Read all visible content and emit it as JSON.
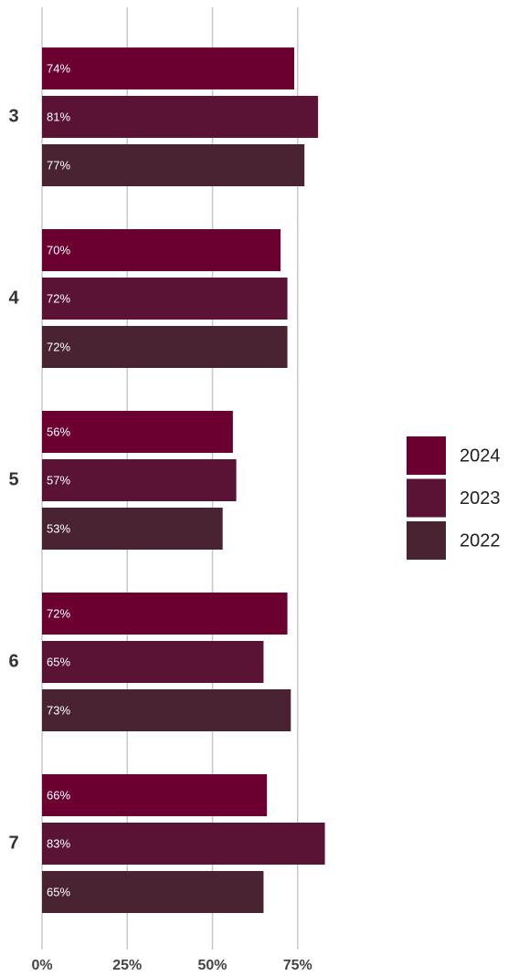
{
  "chart_data": {
    "type": "bar",
    "orientation": "horizontal",
    "categories": [
      "3",
      "4",
      "5",
      "6",
      "7"
    ],
    "series": [
      {
        "name": "2024",
        "color": "#6b0030",
        "values": [
          74,
          70,
          56,
          72,
          66
        ],
        "value_labels": [
          "74%",
          "70%",
          "56%",
          "72%",
          "66%"
        ]
      },
      {
        "name": "2023",
        "color": "#5a1235",
        "values": [
          81,
          72,
          57,
          65,
          83
        ],
        "value_labels": [
          "81%",
          "72%",
          "57%",
          "65%",
          "83%"
        ]
      },
      {
        "name": "2022",
        "color": "#4a2333",
        "values": [
          77,
          72,
          53,
          73,
          65
        ],
        "value_labels": [
          "77%",
          "72%",
          "53%",
          "73%",
          "65%"
        ]
      }
    ],
    "xlim": [
      0,
      100
    ],
    "xticks": [
      {
        "value": 0,
        "label": "0%"
      },
      {
        "value": 25,
        "label": "25%"
      },
      {
        "value": 50,
        "label": "50%"
      },
      {
        "value": 75,
        "label": "75%"
      }
    ],
    "grid": true,
    "legend": "right"
  }
}
